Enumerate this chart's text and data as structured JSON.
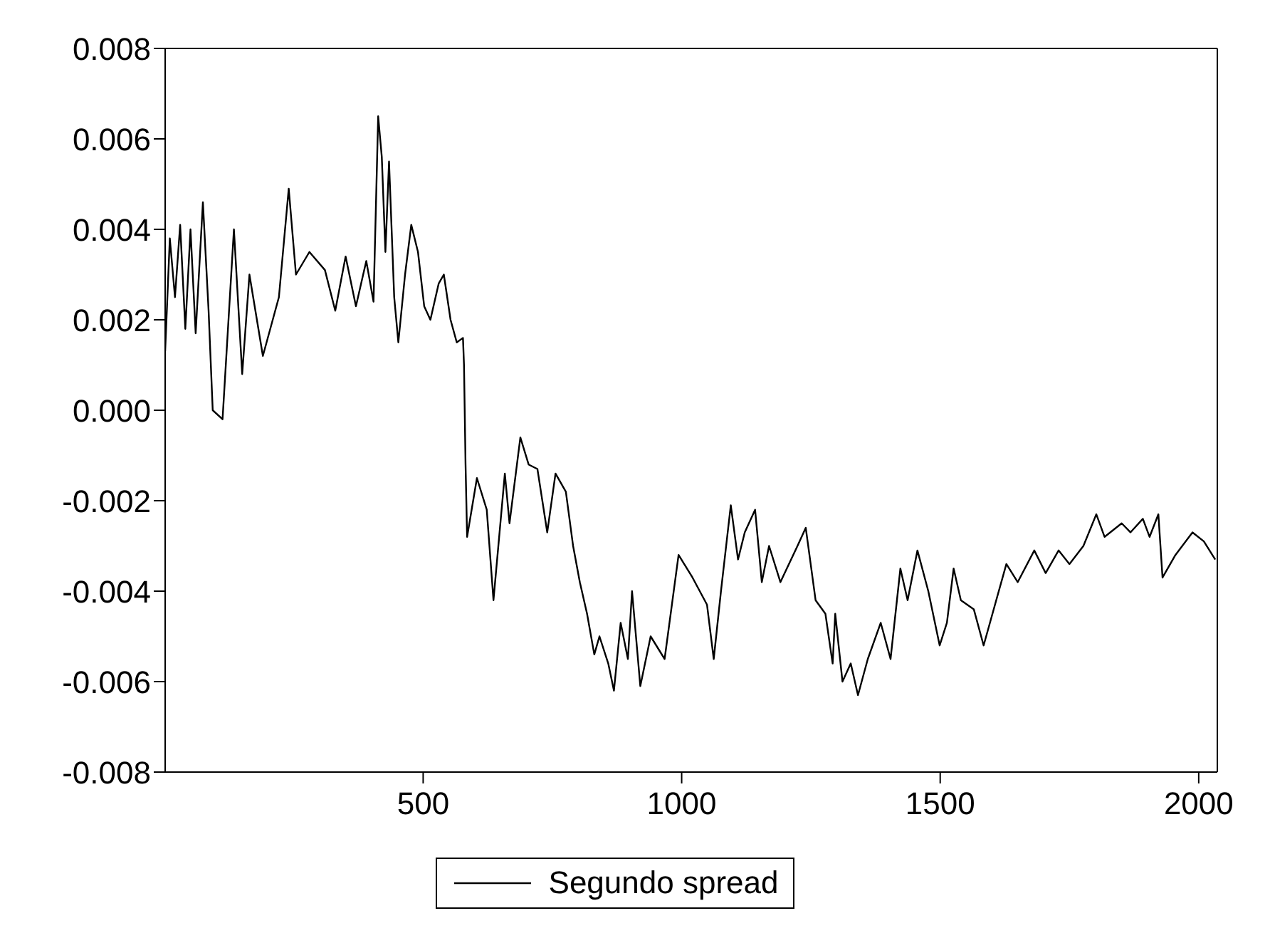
{
  "chart_data": {
    "type": "line",
    "x": [
      1,
      10,
      20,
      30,
      40,
      50,
      60,
      74,
      85,
      93,
      112,
      134,
      150,
      164,
      190,
      221,
      240,
      254,
      280,
      310,
      330,
      350,
      370,
      390,
      404,
      413,
      420,
      427,
      434,
      444,
      452,
      465,
      477,
      490,
      502,
      514,
      530,
      540,
      553,
      565,
      577,
      579,
      582,
      585,
      604,
      623,
      636,
      658,
      667,
      688,
      704,
      721,
      740,
      756,
      776,
      790,
      803,
      817,
      831,
      841,
      858,
      869,
      882,
      896,
      904,
      920,
      940,
      967,
      994,
      1021,
      1049,
      1062,
      1076,
      1095,
      1109,
      1122,
      1142,
      1155,
      1169,
      1191,
      1224,
      1240,
      1259,
      1278,
      1292,
      1297,
      1311,
      1327,
      1341,
      1360,
      1385,
      1404,
      1423,
      1437,
      1456,
      1477,
      1499,
      1513,
      1526,
      1540,
      1565,
      1584,
      1606,
      1628,
      1650,
      1682,
      1704,
      1729,
      1750,
      1777,
      1802,
      1818,
      1851,
      1868,
      1892,
      1905,
      1922,
      1930,
      1955,
      1988,
      2010,
      2032
    ],
    "series": [
      {
        "name": "Segundo spread",
        "color": "#000000",
        "values": [
          0.0013,
          0.0038,
          0.0025,
          0.0041,
          0.0018,
          0.004,
          0.0017,
          0.0046,
          0.0022,
          0.0,
          -0.0002,
          0.004,
          0.0008,
          0.003,
          0.0012,
          0.0025,
          0.0049,
          0.003,
          0.0035,
          0.0031,
          0.0022,
          0.0034,
          0.0023,
          0.0033,
          0.0024,
          0.0065,
          0.0056,
          0.0035,
          0.0055,
          0.0025,
          0.0015,
          0.003,
          0.0041,
          0.0035,
          0.0023,
          0.002,
          0.0028,
          0.003,
          0.002,
          0.0015,
          0.0016,
          0.001,
          -0.0012,
          -0.0028,
          -0.0015,
          -0.0022,
          -0.0042,
          -0.0014,
          -0.0025,
          -0.0006,
          -0.0012,
          -0.0013,
          -0.0027,
          -0.0014,
          -0.0018,
          -0.003,
          -0.0038,
          -0.0045,
          -0.0054,
          -0.005,
          -0.0056,
          -0.0062,
          -0.0047,
          -0.0055,
          -0.004,
          -0.0061,
          -0.005,
          -0.0055,
          -0.0032,
          -0.0037,
          -0.0043,
          -0.0055,
          -0.004,
          -0.0021,
          -0.0033,
          -0.0027,
          -0.0022,
          -0.0038,
          -0.003,
          -0.0038,
          -0.003,
          -0.0026,
          -0.0042,
          -0.0045,
          -0.0056,
          -0.0045,
          -0.006,
          -0.0056,
          -0.0063,
          -0.0055,
          -0.0047,
          -0.0055,
          -0.0035,
          -0.0042,
          -0.0031,
          -0.004,
          -0.0052,
          -0.0047,
          -0.0035,
          -0.0042,
          -0.0044,
          -0.0052,
          -0.0043,
          -0.0034,
          -0.0038,
          -0.0031,
          -0.0036,
          -0.0031,
          -0.0034,
          -0.003,
          -0.0023,
          -0.0028,
          -0.0025,
          -0.0027,
          -0.0024,
          -0.0028,
          -0.0023,
          -0.0037,
          -0.0032,
          -0.0027,
          -0.0029,
          -0.0033
        ]
      }
    ],
    "xlim": [
      1,
      2036
    ],
    "xticks": [
      500,
      1000,
      1500,
      2000
    ],
    "ylim": [
      -0.008,
      0.008
    ],
    "yticks": [
      {
        "value": -0.008,
        "label": "-0.008"
      },
      {
        "value": -0.006,
        "label": "-0.006"
      },
      {
        "value": -0.004,
        "label": "-0.004"
      },
      {
        "value": -0.002,
        "label": "-0.002"
      },
      {
        "value": 0,
        "label": "0.000"
      },
      {
        "value": 0.002,
        "label": "0.002"
      },
      {
        "value": 0.004,
        "label": "0.004"
      },
      {
        "value": 0.006,
        "label": "0.006"
      },
      {
        "value": 0.008,
        "label": "0.008"
      }
    ],
    "legend": "bottom",
    "grid": false,
    "marker": "none",
    "line_style": "solid"
  }
}
